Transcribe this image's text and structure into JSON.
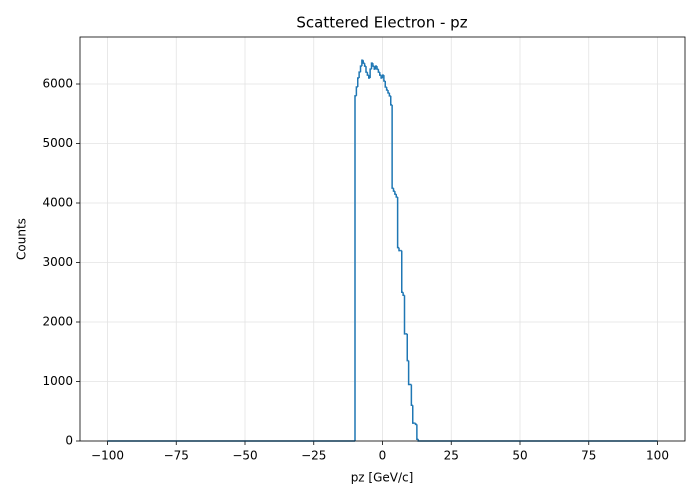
{
  "chart_data": {
    "type": "histogram",
    "title": "Scattered Electron - pz",
    "x_label": "pz [GeV/c]",
    "y_label": "Counts",
    "color": "#1f77b4",
    "grid": true,
    "bins": [
      -100,
      -10,
      -9.5,
      -9,
      -8.5,
      -8,
      -7.5,
      -7,
      -6.5,
      -6,
      -5.5,
      -5,
      -4.5,
      -4,
      -3.5,
      -3,
      -2.5,
      -2,
      -1.5,
      -1,
      -0.5,
      0,
      0.5,
      1,
      1.5,
      2,
      2.5,
      3,
      3.5,
      4,
      4.5,
      5,
      5.5,
      6,
      6.5,
      7,
      7.5,
      8,
      8.5,
      9,
      9.5,
      10,
      10.5,
      11,
      11.5,
      12,
      12.5,
      13,
      100
    ],
    "counts": [
      0,
      5800,
      5950,
      6100,
      6200,
      6300,
      6400,
      6350,
      6300,
      6200,
      6150,
      6100,
      6250,
      6350,
      6300,
      6250,
      6300,
      6250,
      6200,
      6150,
      6100,
      6150,
      6050,
      5950,
      5900,
      5850,
      5800,
      5650,
      4250,
      4200,
      4150,
      4100,
      3250,
      3200,
      3200,
      2500,
      2450,
      1800,
      1800,
      1350,
      950,
      950,
      600,
      300,
      300,
      280,
      30,
      0
    ],
    "xlim": [
      -110,
      110
    ],
    "ylim": [
      0,
      6790
    ],
    "xticks": [
      {
        "value": -100,
        "label": "−100"
      },
      {
        "value": -75,
        "label": "−75"
      },
      {
        "value": -50,
        "label": "−50"
      },
      {
        "value": -25,
        "label": "−25"
      },
      0,
      25,
      50,
      75,
      100
    ],
    "yticks": [
      0,
      1000,
      2000,
      3000,
      4000,
      5000,
      6000
    ]
  }
}
